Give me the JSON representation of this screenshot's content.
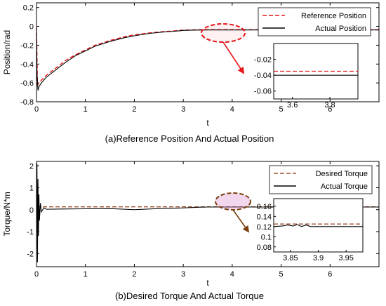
{
  "chart_data": [
    {
      "type": "line",
      "caption": "(a)Reference Position And Actual Position",
      "xlabel": "t",
      "ylabel": "Position/rad",
      "xlim": [
        0,
        7
      ],
      "ylim": [
        -0.8,
        0.25
      ],
      "xticks": [
        "0",
        "1",
        "2",
        "3",
        "4",
        "5",
        "6"
      ],
      "yticks": [
        "0.2",
        "0",
        "-0.2",
        "-0.4",
        "-0.6",
        "-0.8"
      ],
      "legend_position": "top-right",
      "series": [
        {
          "name": "Reference Position",
          "color": "#e8161b",
          "style": "dashed",
          "x": [
            0,
            0.02,
            0.05,
            0.1,
            0.2,
            0.4,
            0.6,
            0.8,
            1.0,
            1.2,
            1.5,
            1.8,
            2.0,
            2.3,
            2.6,
            2.9,
            3.0,
            3.2,
            3.5,
            4.0,
            5.0,
            6.0,
            7.0
          ],
          "y": [
            0.0,
            -0.62,
            -0.6,
            -0.57,
            -0.52,
            -0.44,
            -0.36,
            -0.3,
            -0.25,
            -0.2,
            -0.15,
            -0.11,
            -0.09,
            -0.07,
            -0.055,
            -0.045,
            -0.04,
            -0.037,
            -0.035,
            -0.035,
            -0.035,
            -0.035,
            -0.035
          ]
        },
        {
          "name": "Actual Position",
          "color": "#000000",
          "style": "solid",
          "x": [
            0,
            0.01,
            0.03,
            0.05,
            0.1,
            0.2,
            0.4,
            0.6,
            0.8,
            1.0,
            1.2,
            1.5,
            1.8,
            2.0,
            2.3,
            2.6,
            2.9,
            3.0,
            3.2,
            3.5,
            4.0,
            5.0,
            6.0,
            7.0
          ],
          "y": [
            0.0,
            -0.5,
            -0.68,
            -0.64,
            -0.6,
            -0.54,
            -0.46,
            -0.38,
            -0.31,
            -0.26,
            -0.21,
            -0.16,
            -0.12,
            -0.1,
            -0.075,
            -0.06,
            -0.048,
            -0.043,
            -0.04,
            -0.038,
            -0.038,
            -0.038,
            -0.038,
            -0.038
          ]
        }
      ],
      "inset": {
        "xlim": [
          3.5,
          3.95
        ],
        "ylim": [
          -0.07,
          0.0
        ],
        "xticks": [
          "3.6",
          "3.8"
        ],
        "yticks": [
          "-0.02",
          "-0.04",
          "-0.06"
        ],
        "series": [
          {
            "name": "Reference Position",
            "x": [
              3.5,
              3.95
            ],
            "y": [
              -0.035,
              -0.035
            ]
          },
          {
            "name": "Actual Position",
            "x": [
              3.5,
              3.95
            ],
            "y": [
              -0.04,
              -0.04
            ]
          }
        ]
      }
    },
    {
      "type": "line",
      "caption": "(b)Desired Torque And Actual Torque",
      "xlabel": "t",
      "ylabel": "Torque/N*m",
      "xlim": [
        0,
        7
      ],
      "ylim": [
        -2.6,
        2.2
      ],
      "xticks": [
        "0",
        "1",
        "2",
        "3",
        "4",
        "5",
        "6"
      ],
      "yticks": [
        "2",
        "1",
        "0",
        "-1",
        "-2"
      ],
      "legend_position": "top-right",
      "series": [
        {
          "name": "Desired Torque",
          "color": "#a0522d",
          "style": "dashed",
          "x": [
            0,
            7
          ],
          "y": [
            0.13,
            0.13
          ]
        },
        {
          "name": "Actual Torque",
          "color": "#000000",
          "style": "solid",
          "x": [
            0,
            0.01,
            0.02,
            0.03,
            0.04,
            0.05,
            0.06,
            0.08,
            0.1,
            0.15,
            0.2,
            0.5,
            1.0,
            1.5,
            2.0,
            2.5,
            3.0,
            3.3,
            3.5,
            4.0,
            5.0,
            6.0,
            7.0
          ],
          "y": [
            0.0,
            2.1,
            -2.4,
            1.4,
            -1.2,
            0.7,
            -0.5,
            0.3,
            -0.1,
            0.08,
            0.02,
            0.03,
            0.04,
            0.05,
            0.0,
            0.05,
            0.08,
            0.11,
            0.12,
            0.12,
            0.12,
            0.12,
            0.12
          ]
        }
      ],
      "inset": {
        "xlim": [
          3.82,
          3.98
        ],
        "ylim": [
          0.07,
          0.175
        ],
        "xticks": [
          "3.85",
          "3.9",
          "3.95"
        ],
        "yticks": [
          "0.16",
          "0.14",
          "0.12",
          "0.1",
          "0.08"
        ],
        "series": [
          {
            "name": "Desired Torque",
            "x": [
              3.82,
              3.98
            ],
            "y": [
              0.125,
              0.125
            ]
          },
          {
            "name": "Actual Torque",
            "x": [
              3.82,
              3.835,
              3.845,
              3.855,
              3.862,
              3.87,
              3.878,
              3.886,
              3.98
            ],
            "y": [
              0.12,
              0.121,
              0.123,
              0.121,
              0.124,
              0.12,
              0.123,
              0.12,
              0.12
            ]
          }
        ]
      }
    }
  ]
}
